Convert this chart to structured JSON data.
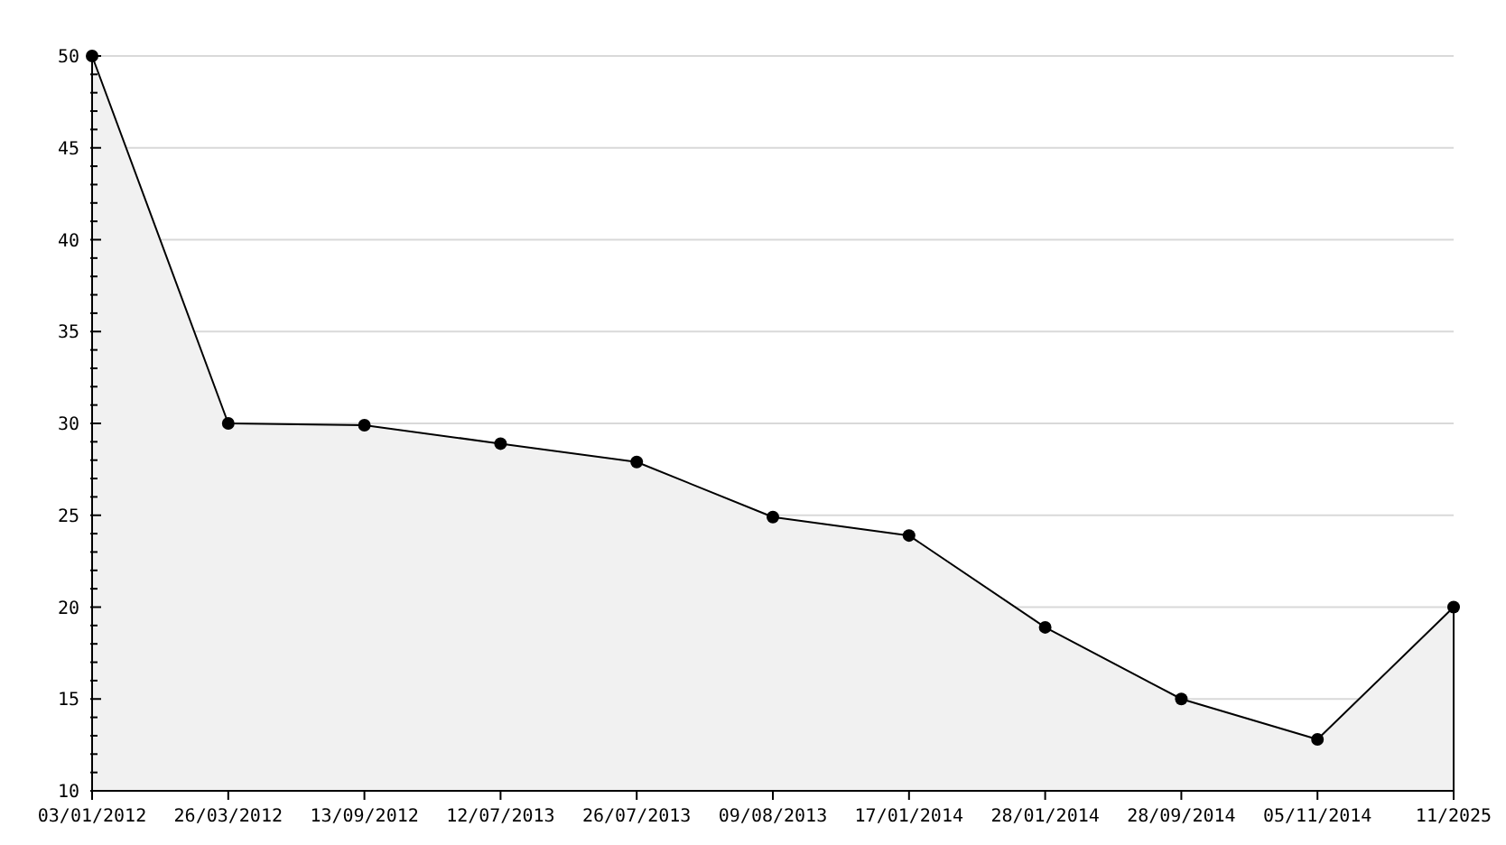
{
  "chart_data": {
    "type": "area",
    "categories": [
      "03/01/2012",
      "26/03/2012",
      "13/09/2012",
      "12/07/2013",
      "26/07/2013",
      "09/08/2013",
      "17/01/2014",
      "28/01/2014",
      "28/09/2014",
      "05/11/2014",
      "11/2025"
    ],
    "series": [
      {
        "color": "#000000",
        "values": [
          50,
          30,
          29.9,
          28.9,
          27.9,
          24.9,
          23.9,
          18.9,
          15,
          12.8,
          20
        ]
      }
    ],
    "ylim": [
      10,
      50
    ],
    "yticks": [
      10,
      {
        "value": 11,
        "label": null
      },
      {
        "value": 12,
        "label": null
      },
      {
        "value": 13,
        "label": null
      },
      {
        "value": 14,
        "label": null
      },
      15,
      {
        "value": 16,
        "label": null
      },
      {
        "value": 17,
        "label": null
      },
      {
        "value": 18,
        "label": null
      },
      {
        "value": 19,
        "label": null
      },
      20,
      {
        "value": 21,
        "label": null
      },
      {
        "value": 22,
        "label": null
      },
      {
        "value": 23,
        "label": null
      },
      {
        "value": 24,
        "label": null
      },
      25,
      {
        "value": 26,
        "label": null
      },
      {
        "value": 27,
        "label": null
      },
      {
        "value": 28,
        "label": null
      },
      {
        "value": 29,
        "label": null
      },
      30,
      {
        "value": 31,
        "label": null
      },
      {
        "value": 32,
        "label": null
      },
      {
        "value": 33,
        "label": null
      },
      {
        "value": 34,
        "label": null
      },
      35,
      {
        "value": 36,
        "label": null
      },
      {
        "value": 37,
        "label": null
      },
      {
        "value": 38,
        "label": null
      },
      {
        "value": 39,
        "label": null
      },
      40,
      {
        "value": 41,
        "label": null
      },
      {
        "value": 42,
        "label": null
      },
      {
        "value": 43,
        "label": null
      },
      {
        "value": 44,
        "label": null
      },
      45,
      {
        "value": 46,
        "label": null
      },
      {
        "value": 47,
        "label": null
      },
      {
        "value": 48,
        "label": null
      },
      {
        "value": 49,
        "label": null
      },
      50
    ],
    "grid": "y",
    "marker": "circle",
    "line_style": "solid"
  }
}
